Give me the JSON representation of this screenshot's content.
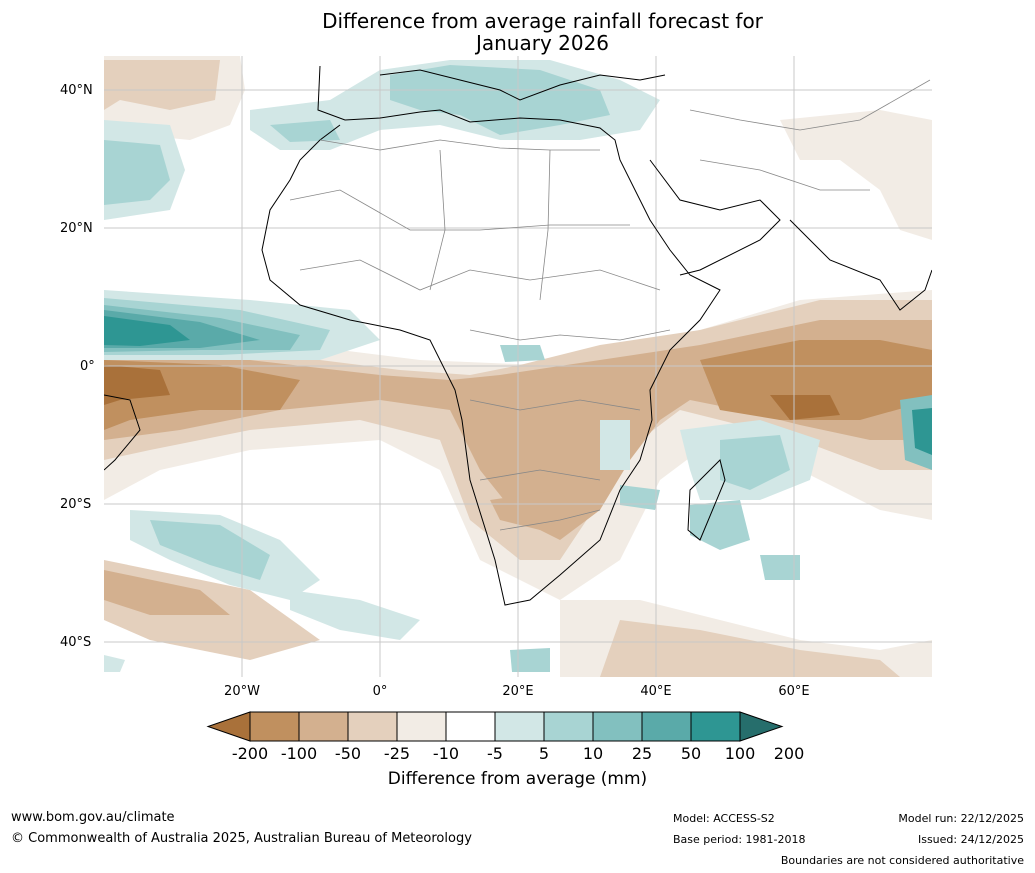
{
  "title": {
    "line1": "Difference from average rainfall forecast for",
    "line2": "January 2026"
  },
  "lat_ticks": [
    "40°N",
    "20°N",
    "0°",
    "20°S",
    "40°S"
  ],
  "lon_ticks": [
    "20°W",
    "0°",
    "20°E",
    "40°E",
    "60°E"
  ],
  "legend": {
    "labels": [
      "-200",
      "-100",
      "-50",
      "-25",
      "-10",
      "-5",
      "5",
      "10",
      "25",
      "50",
      "100",
      "200"
    ],
    "title": "Difference from average (mm)",
    "colors": [
      "#a9713a",
      "#c0905f",
      "#d3b08f",
      "#e4d0bd",
      "#f2ece5",
      "#ffffff",
      "#d2e7e6",
      "#a8d4d3",
      "#82c0bf",
      "#5aaaa9",
      "#2e9693",
      "#266e6c"
    ]
  },
  "footer": {
    "url": "www.bom.gov.au/climate",
    "copyright": "© Commonwealth of Australia 2025, Australian Bureau of Meteorology",
    "model": "Model: ACCESS-S2",
    "base_period": "Base period: 1981-2018",
    "model_run": "Model run: 22/12/2025",
    "issued": "Issued: 24/12/2025",
    "disclaimer": "Boundaries are not considered authoritative"
  }
}
